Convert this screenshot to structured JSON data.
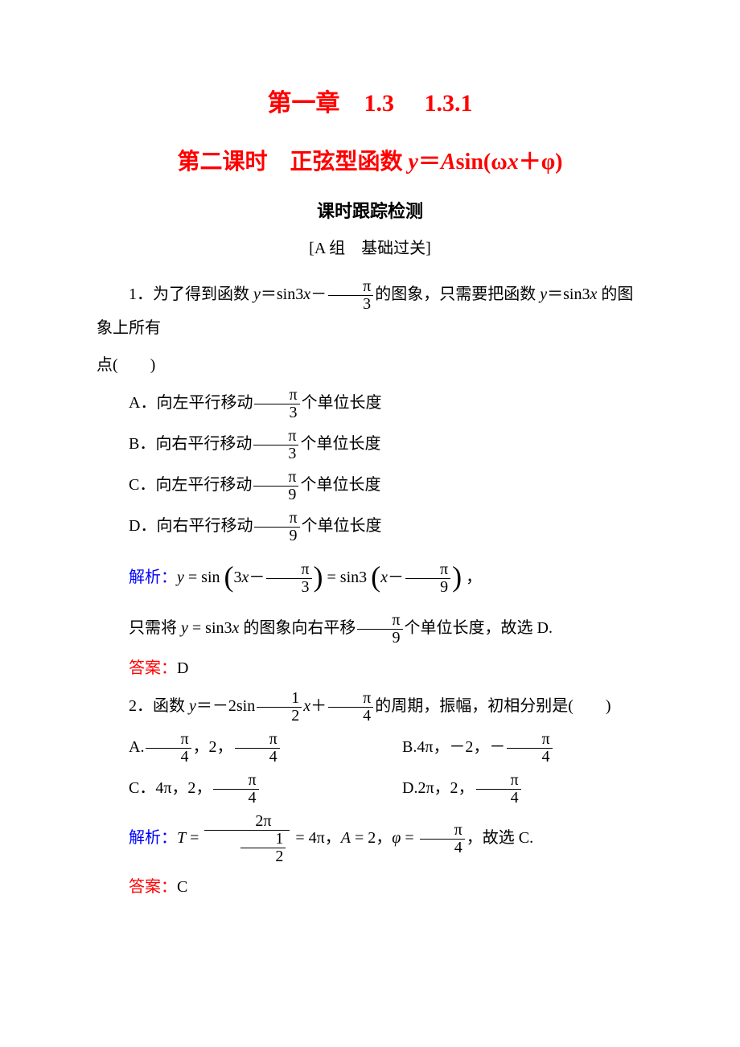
{
  "colors": {
    "title_red": "#ff0000",
    "answer_red": "#ff0000",
    "analysis_blue": "#0000ff",
    "text_black": "#000000",
    "background": "#ffffff"
  },
  "typography": {
    "title_fontsize": 30,
    "subtitle_fontsize": 28,
    "body_fontsize": 20,
    "font_family_cn": "SimSun",
    "font_family_math": "Times New Roman"
  },
  "header": {
    "title1": "第一章　1.3　 1.3.1",
    "title2_prefix": "第二课时　正弦型函数 ",
    "title2_formula_html": "<span class=\"italic\">y</span>＝<span class=\"italic\">A</span>sin(ω<span class=\"italic\">x</span>＋φ)",
    "subtitle": "课时跟踪检测",
    "section_label": "[A 组　基础过关]"
  },
  "q1": {
    "stem_a": "1．为了得到函数 ",
    "stem_b_html": "<span class=\"mi\">y</span>＝sin3<span class=\"mi\">x</span>－<span class=\"frac\"><span class=\"num\">π</span><span class=\"den\">3</span></span>",
    "stem_c": "的图象，只需要把函数 ",
    "stem_d_html": "<span class=\"mi\">y</span>＝sin3<span class=\"mi\">x</span>",
    "stem_e": " 的图象上所有",
    "stem_tail": "点(　　)",
    "optA_pre": "A．向左平行移动",
    "optA_frac_html": "<span class=\"frac\"><span class=\"num\">π</span><span class=\"den\">3</span></span>",
    "optA_post": "个单位长度",
    "optB_pre": "B．向右平行移动",
    "optB_frac_html": "<span class=\"frac\"><span class=\"num\">π</span><span class=\"den\">3</span></span>",
    "optB_post": "个单位长度",
    "optC_pre": "C．向左平行移动",
    "optC_frac_html": "<span class=\"frac\"><span class=\"num\">π</span><span class=\"den\">9</span></span>",
    "optC_post": "个单位长度",
    "optD_pre": "D．向右平行移动",
    "optD_frac_html": "<span class=\"frac\"><span class=\"num\">π</span><span class=\"den\">9</span></span>",
    "optD_post": "个单位长度",
    "analysis_label": "解析：",
    "analysis_line1_html": "<span class=\"mi\">y</span> = sin <span class=\"paren-big\">(</span>3<span class=\"mi\">x</span>－<span class=\"frac\"><span class=\"num\">π</span><span class=\"den\">3</span></span><span class=\"paren-big\">)</span> = sin3 <span class=\"paren-big\">(</span><span class=\"mi\">x</span>－<span class=\"frac\"><span class=\"num\">π</span><span class=\"den\">9</span></span><span class=\"paren-big\">)</span> ，",
    "analysis_line2_a": "只需将 ",
    "analysis_line2_b_html": "<span class=\"mi\">y</span> = sin3<span class=\"mi\">x</span>",
    "analysis_line2_c": " 的图象向右平移",
    "analysis_line2_frac_html": "<span class=\"frac\"><span class=\"num\">π</span><span class=\"den\">9</span></span>",
    "analysis_line2_d": "个单位长度，故选 D.",
    "answer_label": "答案：",
    "answer_value": "D"
  },
  "q2": {
    "stem_a": "2．函数 ",
    "stem_b_html": "<span class=\"mi\">y</span>＝－2sin<span class=\"frac\"><span class=\"num\">1</span><span class=\"den\">2</span></span><span class=\"mi\">x</span>＋<span class=\"frac\"><span class=\"num\">π</span><span class=\"den\">4</span></span>",
    "stem_c": "的周期，振幅，初相分别是(　　)",
    "optA_html": "A.<span class=\"frac\"><span class=\"num\">π</span><span class=\"den\">4</span></span>，2，<span class=\"frac\"><span class=\"num\">π</span><span class=\"den\">4</span></span>",
    "optB_html": "B.4π，－2，－<span class=\"frac\"><span class=\"num\">π</span><span class=\"den\">4</span></span>",
    "optC_html": "C．4π，2，<span class=\"frac\"><span class=\"num\">π</span><span class=\"den\">4</span></span>",
    "optD_html": "D.2π，2，<span class=\"frac\"><span class=\"num\">π</span><span class=\"den\">4</span></span>",
    "analysis_label": "解析：",
    "analysis_html": "<span class=\"mi\">T</span> = <span class=\"frac\"><span class=\"num\">2π</span><span class=\"den\"><span class=\"frac\"><span class=\"num\">1</span><span class=\"den\">2</span></span></span></span> = 4π，<span class=\"mi\">A</span> = 2，<span class=\"mi\">φ</span> = <span class=\"frac\"><span class=\"num\">π</span><span class=\"den\">4</span></span>，故选 C.",
    "answer_label": "答案：",
    "answer_value": "C"
  }
}
